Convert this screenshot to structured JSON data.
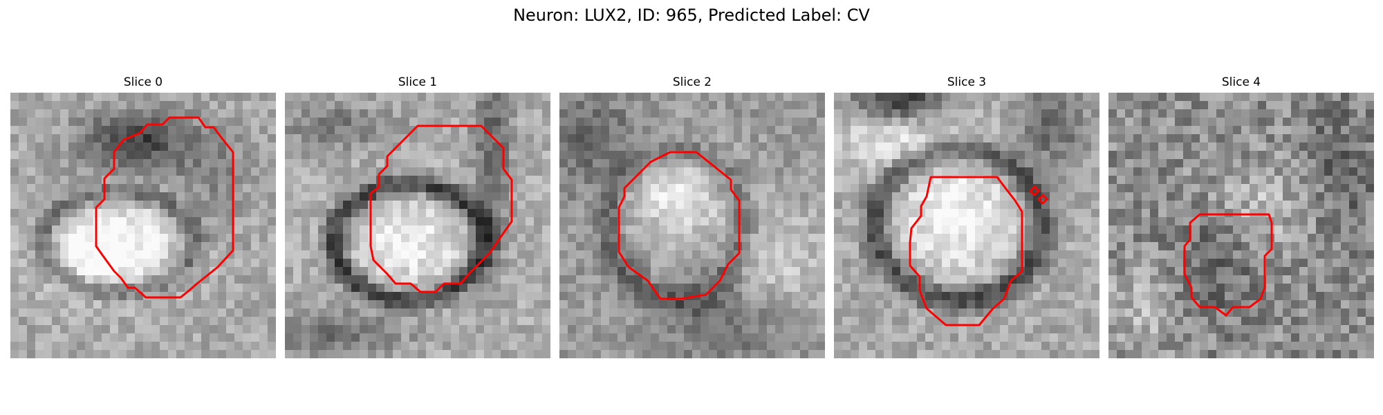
{
  "figure": {
    "title": "Neuron: LUX2, ID: 965, Predicted Label: CV",
    "contour_color": "#ff0000",
    "colormap": "gray",
    "slices": [
      {
        "label": "Slice 0"
      },
      {
        "label": "Slice 1"
      },
      {
        "label": "Slice 2"
      },
      {
        "label": "Slice 3"
      },
      {
        "label": "Slice 4"
      }
    ]
  }
}
